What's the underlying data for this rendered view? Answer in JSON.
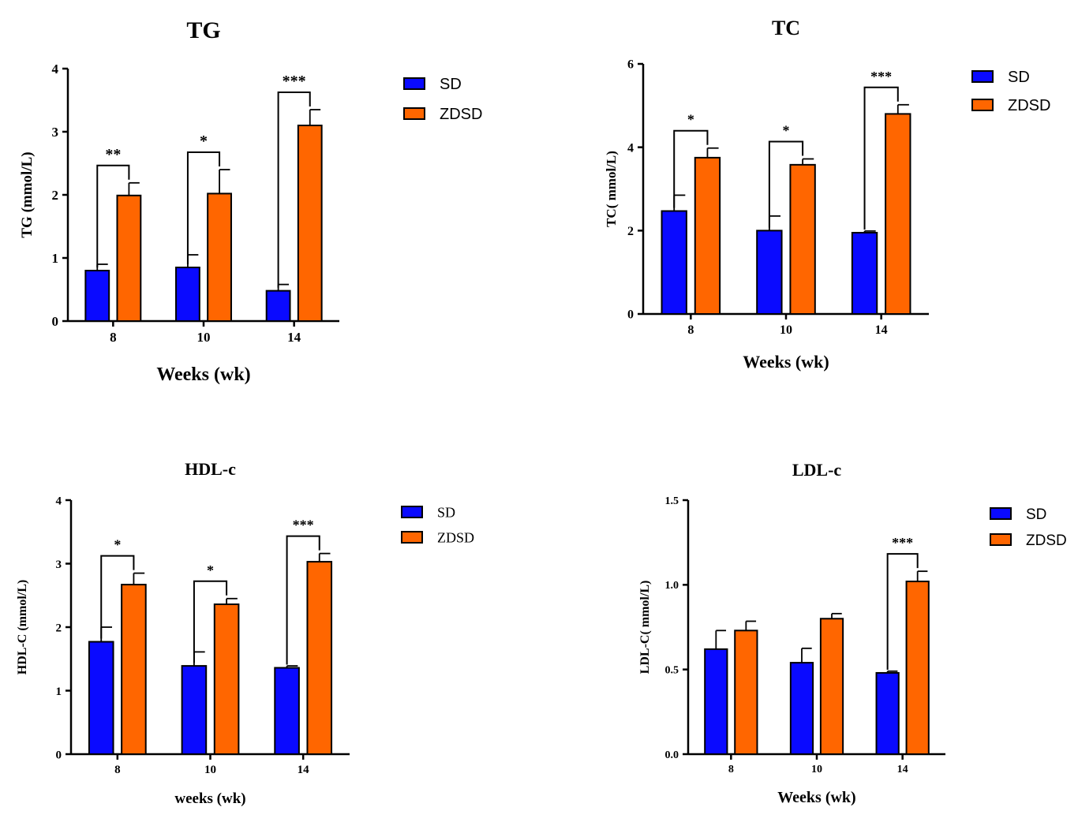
{
  "colors": {
    "sd": "#0a0aff",
    "zdsd": "#ff6600",
    "axis": "#000000"
  },
  "chart_data": [
    {
      "type": "bar",
      "title": "TG",
      "xlabel": "Weeks (wk)",
      "ylabel": "TG (mmol/L)",
      "categories": [
        "8",
        "10",
        "14"
      ],
      "ylim": [
        0,
        4
      ],
      "yticks": [
        "0",
        "1",
        "2",
        "3",
        "4"
      ],
      "series": [
        {
          "name": "SD",
          "values": [
            0.8,
            0.85,
            0.48
          ],
          "errors": [
            0.1,
            0.2,
            0.1
          ]
        },
        {
          "name": "ZDSD",
          "values": [
            1.99,
            2.02,
            3.1
          ],
          "errors": [
            0.2,
            0.38,
            0.25
          ]
        }
      ],
      "significance": [
        "**",
        "*",
        "***"
      ],
      "legend": "top-right"
    },
    {
      "type": "bar",
      "title": "TC",
      "xlabel": "Weeks (wk)",
      "ylabel": "TC( mmol/L)",
      "categories": [
        "8",
        "10",
        "14"
      ],
      "ylim": [
        0,
        6
      ],
      "yticks": [
        "0",
        "2",
        "4",
        "6"
      ],
      "series": [
        {
          "name": "SD",
          "values": [
            2.47,
            2.0,
            1.95
          ],
          "errors": [
            0.38,
            0.35,
            0.04
          ]
        },
        {
          "name": "ZDSD",
          "values": [
            3.75,
            3.58,
            4.8
          ],
          "errors": [
            0.23,
            0.14,
            0.22
          ]
        }
      ],
      "significance": [
        "*",
        "*",
        "***"
      ],
      "legend": "top-right"
    },
    {
      "type": "bar",
      "title": "HDL-c",
      "xlabel": "weeks  (wk)",
      "ylabel": "HDL-C (mmol/L)",
      "categories": [
        "8",
        "10",
        "14"
      ],
      "ylim": [
        0,
        4
      ],
      "yticks": [
        "0",
        "1",
        "2",
        "3",
        "4"
      ],
      "series": [
        {
          "name": "SD",
          "values": [
            1.77,
            1.39,
            1.36
          ],
          "errors": [
            0.23,
            0.22,
            0.03
          ]
        },
        {
          "name": "ZDSD",
          "values": [
            2.67,
            2.36,
            3.03
          ],
          "errors": [
            0.18,
            0.09,
            0.13
          ]
        }
      ],
      "significance": [
        "*",
        "*",
        "***"
      ],
      "legend": "top-right"
    },
    {
      "type": "bar",
      "title": "LDL-c",
      "xlabel": "Weeks  (wk)",
      "ylabel": "LDL-C( mmol/L)",
      "categories": [
        "8",
        "10",
        "14"
      ],
      "ylim": [
        0,
        1.5
      ],
      "yticks": [
        "0.0",
        "0.5",
        "1.0",
        "1.5"
      ],
      "series": [
        {
          "name": "SD",
          "values": [
            0.62,
            0.54,
            0.48
          ],
          "errors": [
            0.11,
            0.085,
            0.01
          ]
        },
        {
          "name": "ZDSD",
          "values": [
            0.73,
            0.8,
            1.02
          ],
          "errors": [
            0.055,
            0.03,
            0.06
          ]
        }
      ],
      "significance": [
        "",
        "",
        "***"
      ],
      "legend": "top-right"
    }
  ]
}
